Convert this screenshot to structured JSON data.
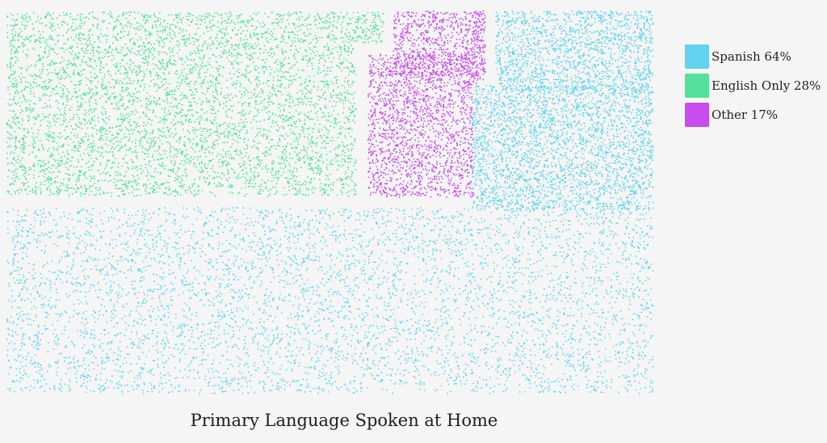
{
  "chart_data": {
    "type": "dot-density area",
    "title": "Primary Language Spoken at Home",
    "categories": [
      "Spanish",
      "English Only",
      "Other"
    ],
    "values": [
      64,
      28,
      17
    ],
    "unit": "%",
    "colors": {
      "Spanish": "#63d2f0",
      "English Only": "#55e09b",
      "Other": "#c84cf0"
    },
    "legend": {
      "position": "top-right",
      "items": [
        {
          "label": "Spanish 64%",
          "color": "#63d2f0"
        },
        {
          "label": "English Only 28%",
          "color": "#55e09b"
        },
        {
          "label": "Other 17%",
          "color": "#c84cf0"
        }
      ]
    }
  }
}
